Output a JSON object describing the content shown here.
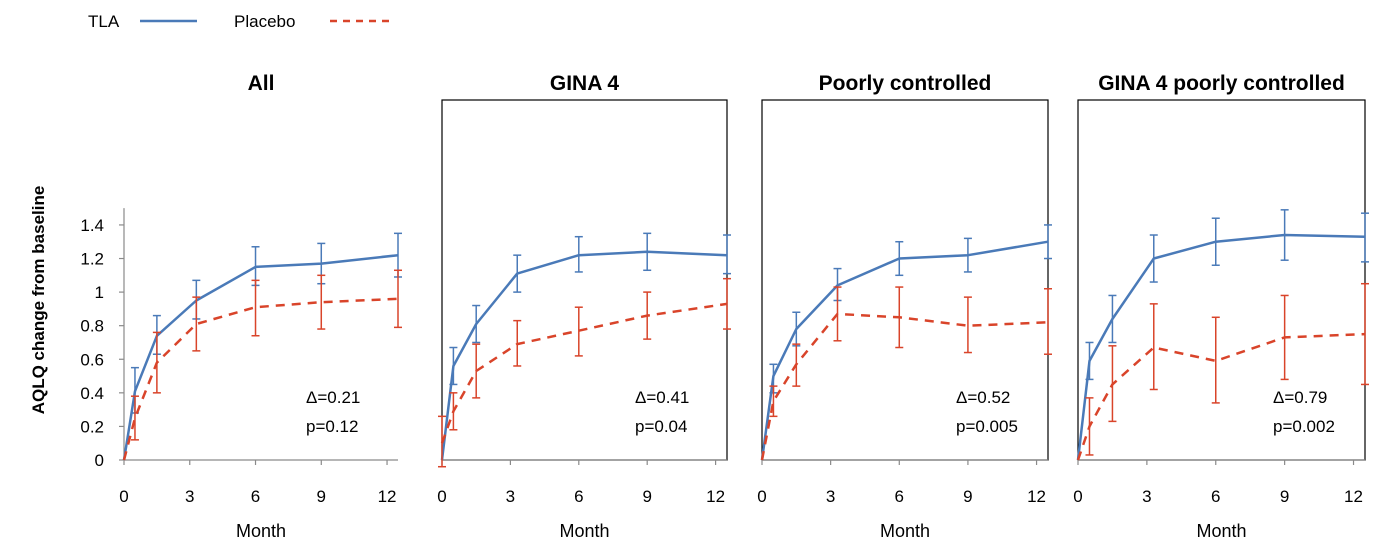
{
  "legend": [
    {
      "name": "TLA",
      "color": "#4a7ab8",
      "dash": "solid"
    },
    {
      "name": "Placebo",
      "color": "#d9442a",
      "dash": "dashed"
    }
  ],
  "ylabel": "AQLQ change from baseline",
  "chart_data": [
    {
      "type": "line",
      "title": "All",
      "xlabel": "Month",
      "xticks": [
        0,
        3,
        6,
        9,
        12
      ],
      "yticks": [
        "0",
        "0.2",
        "0.4",
        "0.6",
        "0.8",
        "1",
        "1.2",
        "1.4"
      ],
      "ylim": [
        0,
        1.5
      ],
      "xlim": [
        0,
        12.5
      ],
      "framed": false,
      "annotation": [
        "Δ=0.21",
        "p=0.12"
      ],
      "series": [
        {
          "name": "TLA",
          "x": [
            0,
            0.5,
            1.5,
            3.3,
            6,
            9,
            12.5
          ],
          "y": [
            0.0,
            0.41,
            0.74,
            0.95,
            1.15,
            1.17,
            1.22
          ],
          "err_lo": [
            null,
            0.28,
            0.63,
            0.84,
            1.04,
            1.05,
            1.09
          ],
          "err_hi": [
            null,
            0.55,
            0.86,
            1.07,
            1.27,
            1.29,
            1.35
          ]
        },
        {
          "name": "Placebo",
          "x": [
            0,
            0.5,
            1.5,
            3.3,
            6,
            9,
            12.5
          ],
          "y": [
            0.0,
            0.25,
            0.58,
            0.81,
            0.91,
            0.94,
            0.96
          ],
          "err_lo": [
            null,
            0.12,
            0.4,
            0.65,
            0.74,
            0.78,
            0.79
          ],
          "err_hi": [
            null,
            0.38,
            0.76,
            0.97,
            1.07,
            1.1,
            1.13
          ]
        }
      ]
    },
    {
      "type": "line",
      "title": "GINA 4",
      "xlabel": "Month",
      "xticks": [
        0,
        3,
        6,
        9,
        12
      ],
      "ylim": [
        0,
        1.5
      ],
      "xlim": [
        0,
        12.5
      ],
      "framed": true,
      "annotation": [
        "Δ=0.41",
        "p=0.04"
      ],
      "series": [
        {
          "name": "TLA",
          "x": [
            0,
            0.5,
            1.5,
            3.3,
            6,
            9,
            12.5
          ],
          "y": [
            0.0,
            0.56,
            0.81,
            1.11,
            1.22,
            1.24,
            1.22
          ],
          "err_lo": [
            null,
            0.45,
            0.7,
            1.0,
            1.12,
            1.13,
            1.11
          ],
          "err_hi": [
            null,
            0.67,
            0.92,
            1.22,
            1.33,
            1.35,
            1.34
          ]
        },
        {
          "name": "Placebo",
          "x": [
            0,
            0.5,
            1.5,
            3.3,
            6,
            9,
            12.5
          ],
          "y": [
            0.1,
            0.29,
            0.53,
            0.69,
            0.77,
            0.86,
            0.93
          ],
          "err_lo": [
            -0.04,
            0.18,
            0.37,
            0.56,
            0.62,
            0.72,
            0.78
          ],
          "err_hi": [
            0.26,
            0.4,
            0.69,
            0.83,
            0.91,
            1.0,
            1.08
          ]
        }
      ]
    },
    {
      "type": "line",
      "title": "Poorly controlled",
      "xlabel": "Month",
      "xticks": [
        0,
        3,
        6,
        9,
        12
      ],
      "ylim": [
        0,
        1.5
      ],
      "xlim": [
        0,
        12.5
      ],
      "framed": true,
      "annotation": [
        "Δ=0.52",
        "p=0.005"
      ],
      "series": [
        {
          "name": "TLA",
          "x": [
            0,
            0.5,
            1.5,
            3.3,
            6,
            9,
            12.5
          ],
          "y": [
            0.0,
            0.5,
            0.78,
            1.04,
            1.2,
            1.22,
            1.3
          ],
          "err_lo": [
            null,
            0.4,
            0.68,
            0.95,
            1.1,
            1.12,
            1.2
          ],
          "err_hi": [
            null,
            0.57,
            0.88,
            1.14,
            1.3,
            1.32,
            1.4
          ]
        },
        {
          "name": "Placebo",
          "x": [
            0,
            0.5,
            1.5,
            3.3,
            6,
            9,
            12.5
          ],
          "y": [
            0.0,
            0.35,
            0.57,
            0.87,
            0.85,
            0.8,
            0.82
          ],
          "err_lo": [
            null,
            0.26,
            0.44,
            0.71,
            0.67,
            0.64,
            0.63
          ],
          "err_hi": [
            null,
            0.44,
            0.69,
            1.03,
            1.03,
            0.97,
            1.02
          ]
        }
      ]
    },
    {
      "type": "line",
      "title": "GINA 4 poorly controlled",
      "xlabel": "Month",
      "xticks": [
        0,
        3,
        6,
        9,
        12
      ],
      "ylim": [
        0,
        1.5
      ],
      "xlim": [
        0,
        12.5
      ],
      "framed": true,
      "annotation": [
        "Δ=0.79",
        "p=0.002"
      ],
      "series": [
        {
          "name": "TLA",
          "x": [
            0,
            0.5,
            1.5,
            3.3,
            6,
            9,
            12.5
          ],
          "y": [
            0.0,
            0.59,
            0.84,
            1.2,
            1.3,
            1.34,
            1.33
          ],
          "err_lo": [
            null,
            0.48,
            0.7,
            1.06,
            1.16,
            1.19,
            1.18
          ],
          "err_hi": [
            null,
            0.7,
            0.98,
            1.34,
            1.44,
            1.49,
            1.47
          ]
        },
        {
          "name": "Placebo",
          "x": [
            0,
            0.5,
            1.5,
            3.3,
            6,
            9,
            12.5
          ],
          "y": [
            0.0,
            0.2,
            0.45,
            0.67,
            0.59,
            0.73,
            0.75
          ],
          "err_lo": [
            null,
            0.03,
            0.23,
            0.42,
            0.34,
            0.48,
            0.45
          ],
          "err_hi": [
            null,
            0.37,
            0.68,
            0.93,
            0.85,
            0.98,
            1.05
          ]
        }
      ]
    }
  ]
}
